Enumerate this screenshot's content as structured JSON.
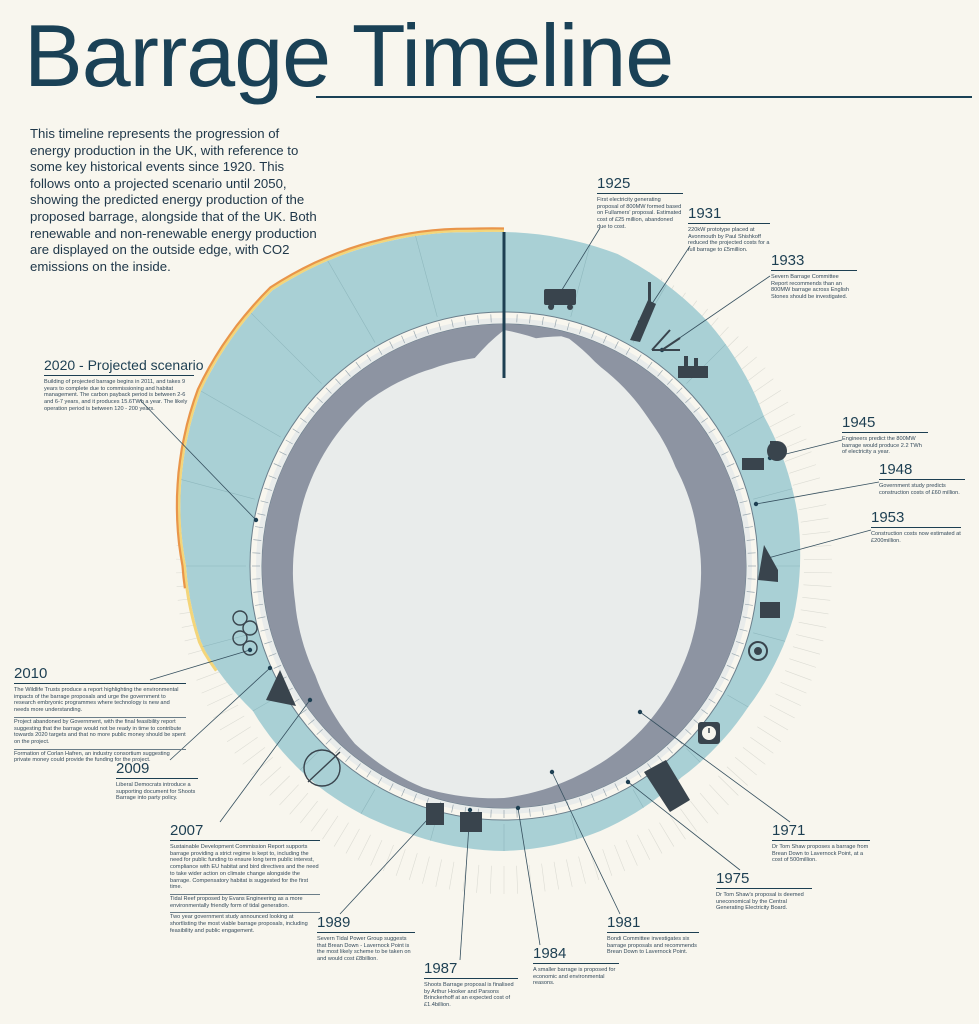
{
  "title": "Barrage Timeline",
  "intro": "This timeline represents the progression of energy production in the UK, with reference to some key historical events since 1920. This follows onto a projected scenario until 2050, showing the predicted energy production of the proposed barrage, alongside that of the UK. Both renewable and non-renewable energy production are displayed on the outside edge, with CO2 emissions on the inside.",
  "colors": {
    "background": "#f8f6ee",
    "title": "#1a4156",
    "outer_band": "#a9d0d5",
    "inner_band": "#8d94a2",
    "orange_edge": "#e9954a",
    "yellow_edge": "#f3d57a",
    "ring": "#6b7f8c"
  },
  "icons": [
    "bus-icon",
    "tower-icon",
    "crane-icon",
    "factory-icon",
    "power-plant-icon",
    "bunker-icon",
    "ship-icon",
    "atom-icon",
    "clock-icon",
    "ruler-icon",
    "drill-icon",
    "turbine-icon",
    "compass-icon",
    "rings-icon"
  ],
  "events": {
    "e1925": {
      "year": "1925",
      "text": "First electricity generating proposal of 800MW formed based on Fullamers' proposal. Estimated cost of £25 million, abandoned due to cost."
    },
    "e1931": {
      "year": "1931",
      "text": "220kW prototype placed at Avonmouth by Paul Shishkoff reduced the projected costs for a full barrage to £5million."
    },
    "e1933": {
      "year": "1933",
      "text": "Severn Barrage Committee Report recommends than an 800MW barrage across English Stones should be investigated."
    },
    "e1945": {
      "year": "1945",
      "text": "Engineers predict the 800MW barrage would produce 2.2 TWh of electricity a year."
    },
    "e1948": {
      "year": "1948",
      "text": "Government study predicts construction costs of £60 million."
    },
    "e1953": {
      "year": "1953",
      "text": "Construction costs now estimated at £200million."
    },
    "e1971": {
      "year": "1971",
      "text": "Dr Tom Shaw proposes a barrage from Brean Down to Lavernock Point, at a cost of 500million."
    },
    "e1975": {
      "year": "1975",
      "text": "Dr Tom Shaw's proposal is deemed uneconomical by the Central Generating Electricity Board."
    },
    "e1981": {
      "year": "1981",
      "text": "Bondi Committee investigates six barrage proposals and recommends Brean Down to Lavernock Point."
    },
    "e1984": {
      "year": "1984",
      "text": "A smaller barrage is proposed for economic and environmental reasons."
    },
    "e1987": {
      "year": "1987",
      "text": "Shoots Barrage proposal is finalised by Arthur Hooker and Parsons Brinckerhoff at an expected cost of £1.4billion."
    },
    "e1989": {
      "year": "1989",
      "text": "Severn Tidal Power Group suggests that Brean Down - Lavernock Point is the most likely scheme to be taken on and would cost £8billion."
    },
    "e2007": {
      "year": "2007",
      "text": "Sustainable Development Commission Report supports barrage providing a strict regime is kept to, including the need for public funding to ensure long term public interest, compliance with EU habitat and bird directives and the need to take wider action on climate change alongside the barrage. Compensatory habitat is suggested for the first time.",
      "text2": "Tidal Reef proposed by Evans Engineering as a more environmentally friendly form of tidal generation.",
      "text3": "Two year government study announced looking at shortlisting the most viable barrage proposals, including feasibility and public engagement."
    },
    "e2009": {
      "year": "2009",
      "text": "Liberal Democrats introduce a supporting document for Shoots Barrage into party policy."
    },
    "e2010": {
      "year": "2010",
      "text": "The Wildlife Trusts produce a report highlighting the environmental impacts of the barrage proposals and urge the government to research embryonic programmes where technology is new and needs more understanding.",
      "text2": "Project abandoned by Government, with the final feasibility report suggesting that the barrage would not be ready in time to contribute towards 2020 targets and that no more public money should be spent on the project.",
      "text3": "Formation of Corlan Hafren, an industry consortium suggesting private money could provide the funding for the project."
    },
    "e2020": {
      "year": "2020 - Projected scenario",
      "text": "Building of projected barrage begins in 2011, and takes 9 years to complete due to commissioning and habitat management. The carbon payback period is between 2-6 and 6-7 years, and it produces 15.6TWh a year. The likely operation period is between 120 - 200 years."
    }
  }
}
